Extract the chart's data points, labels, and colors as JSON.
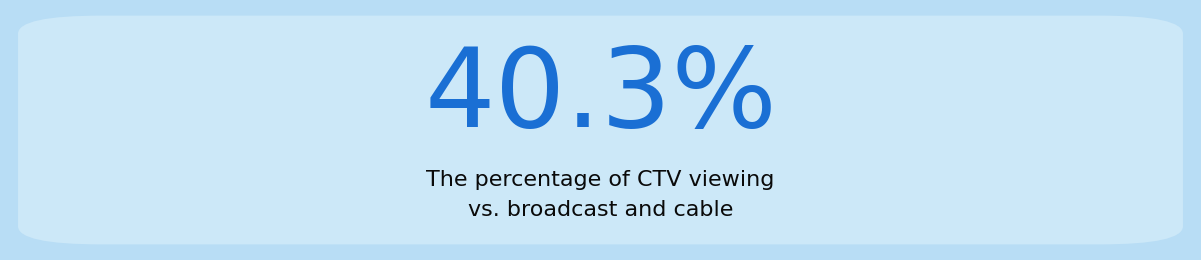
{
  "main_text": "40.3%",
  "sub_text_line1": "The percentage of CTV viewing",
  "sub_text_line2": "vs. broadcast and cable",
  "main_color": "#1a6fd4",
  "sub_color": "#0a0a0a",
  "background_color": "#cce8f8",
  "outer_background": "#b8ddf5",
  "main_fontsize": 80,
  "sub_fontsize": 16,
  "fig_width": 12.01,
  "fig_height": 2.6
}
